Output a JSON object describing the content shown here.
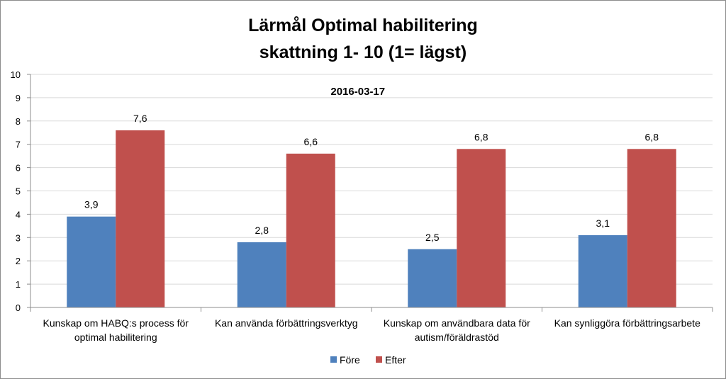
{
  "chart_data": {
    "type": "bar",
    "title_line1": "Lärmål Optimal habilitering",
    "title_line2": "skattning 1- 10 (1= lägst)",
    "subtitle": "2016-03-17",
    "categories": [
      [
        "Kunskap om HABQ:s process  för",
        "optimal habilitering"
      ],
      [
        "Kan använda förbättringsverktyg"
      ],
      [
        "Kunskap om användbara data för",
        "autism/föräldrastöd"
      ],
      [
        "Kan synliggöra förbättringsarbete"
      ]
    ],
    "series": [
      {
        "name": "Före",
        "color": "#4f81bd",
        "values": [
          3.9,
          2.8,
          2.5,
          3.1
        ],
        "labels": [
          "3,9",
          "2,8",
          "2,5",
          "3,1"
        ]
      },
      {
        "name": "Efter",
        "color": "#c0504d",
        "values": [
          7.6,
          6.6,
          6.8,
          6.8
        ],
        "labels": [
          "7,6",
          "6,6",
          "6,8",
          "6,8"
        ]
      }
    ],
    "ylim": [
      0,
      10
    ],
    "yticks": [
      "0",
      "1",
      "2",
      "3",
      "4",
      "5",
      "6",
      "7",
      "8",
      "9",
      "10"
    ],
    "grid": true,
    "legend": "bottom",
    "xlabel": "",
    "ylabel": ""
  }
}
